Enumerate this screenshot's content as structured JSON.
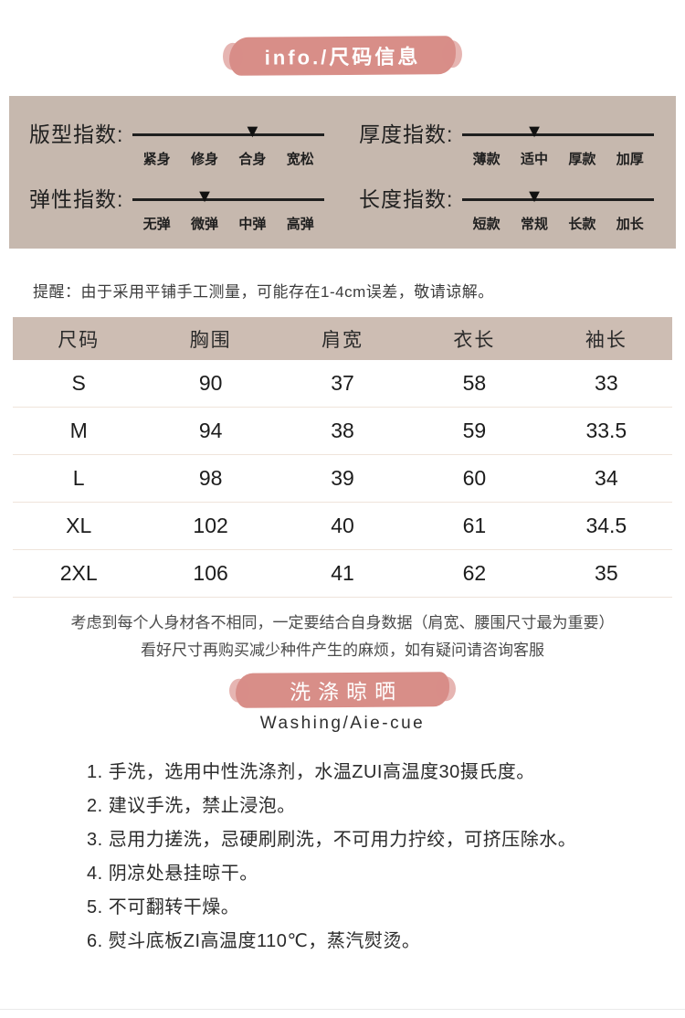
{
  "header": {
    "badge_text": "info./尺码信息"
  },
  "indices": {
    "items": [
      {
        "name": "fit-index",
        "label": "版型指数:",
        "options": [
          "紧身",
          "修身",
          "合身",
          "宽松"
        ],
        "selected": "合身",
        "arrow_percent": 62.5
      },
      {
        "name": "thickness-index",
        "label": "厚度指数:",
        "options": [
          "薄款",
          "适中",
          "厚款",
          "加厚"
        ],
        "selected": "适中",
        "arrow_percent": 37.5
      },
      {
        "name": "elasticity-index",
        "label": "弹性指数:",
        "options": [
          "无弹",
          "微弹",
          "中弹",
          "高弹"
        ],
        "selected": "微弹",
        "arrow_percent": 37.5
      },
      {
        "name": "length-index",
        "label": "长度指数:",
        "options": [
          "短款",
          "常规",
          "长款",
          "加长"
        ],
        "selected": "常规",
        "arrow_percent": 37.5
      }
    ],
    "arrow_icon": "▼"
  },
  "reminder": "提醒：由于采用平铺手工测量，可能存在1-4cm误差，敬请谅解。",
  "size_table": {
    "headers": [
      "尺码",
      "胸围",
      "肩宽",
      "衣长",
      "袖长"
    ],
    "rows": [
      [
        "S",
        "90",
        "37",
        "58",
        "33"
      ],
      [
        "M",
        "94",
        "38",
        "59",
        "33.5"
      ],
      [
        "L",
        "98",
        "39",
        "60",
        "34"
      ],
      [
        "XL",
        "102",
        "40",
        "61",
        "34.5"
      ],
      [
        "2XL",
        "106",
        "41",
        "62",
        "35"
      ]
    ]
  },
  "size_notes": [
    "考虑到每个人身材各不相同，一定要结合自身数据（肩宽、腰围尺寸最为重要）",
    "看好尺寸再购买减少种件产生的麻烦，如有疑问请咨询客服"
  ],
  "washing": {
    "badge_text": "洗涤晾晒",
    "subtitle": "Washing/Aie-cue",
    "steps": [
      "1. 手洗，选用中性洗涤剂，水温ZUI高温度30摄氏度。",
      "2. 建议手洗，禁止浸泡。",
      "3. 忌用力搓洗，忌硬刷刷洗，不可用力拧绞，可挤压除水。",
      "4. 阴凉处悬挂晾干。",
      "5. 不可翻转干燥。",
      "6. 熨斗底板ZI高温度110℃，蒸汽熨烫。"
    ]
  },
  "colors": {
    "accent_pink": "#d88e88",
    "panel_taupe": "#c6b8ae",
    "table_header_bg": "#cdbdb3",
    "row_divider": "#efe4db",
    "text_dark": "#1f1f1f"
  }
}
